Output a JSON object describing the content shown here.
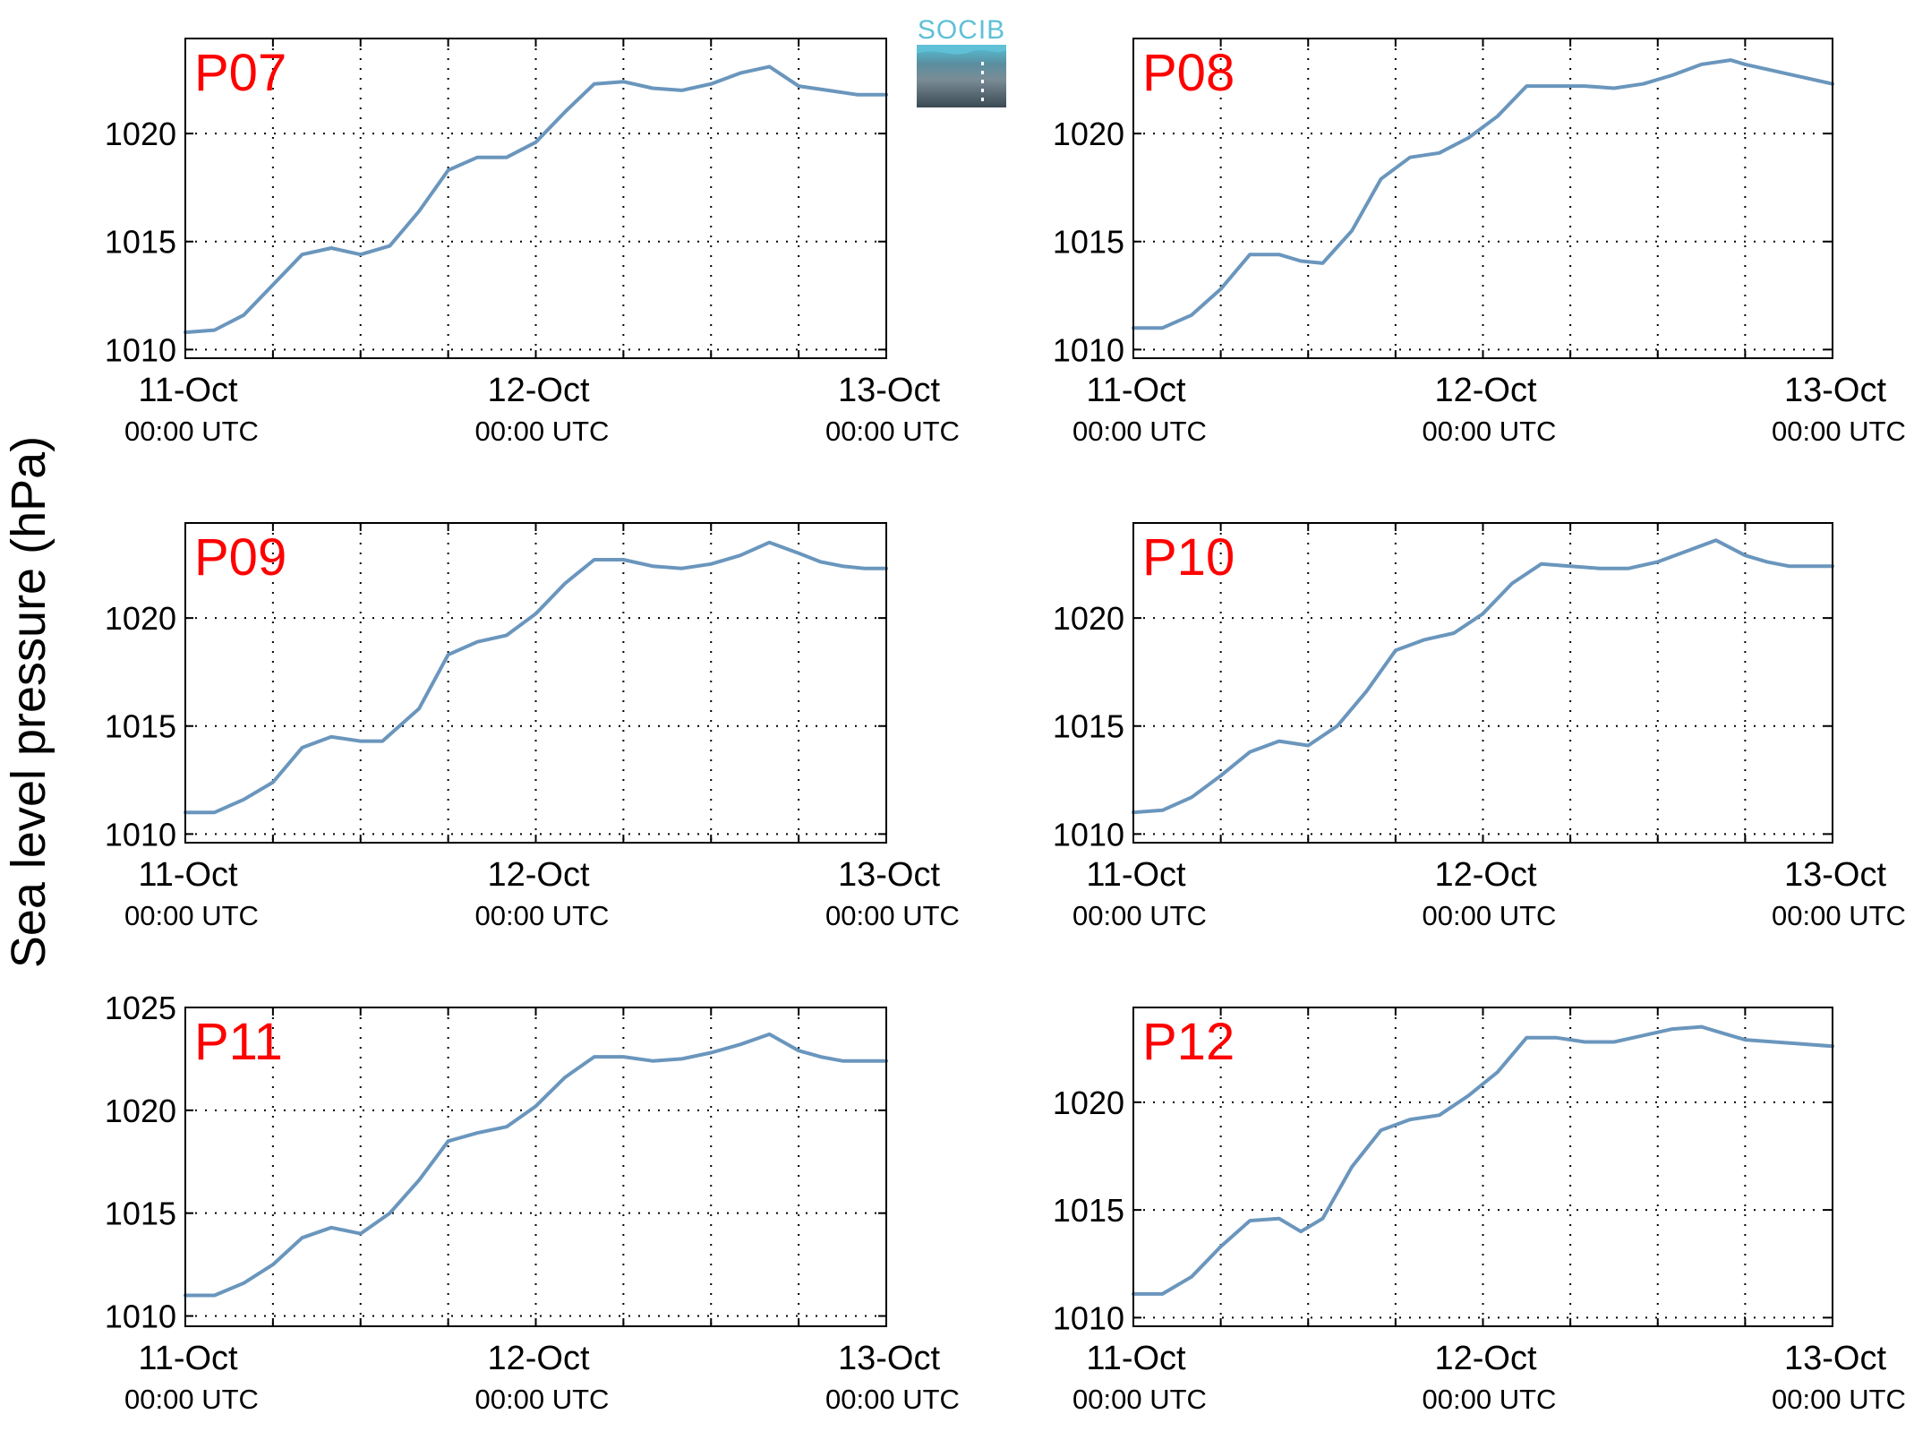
{
  "ylabel": "Sea level pressure (hPa)",
  "logo": {
    "text": "SOCIB",
    "color": "#5fc0d6"
  },
  "line_color": "#6a96bd",
  "title_color": "#ff0000",
  "chart_data": [
    {
      "type": "line",
      "title": "P07",
      "x_ticks": [
        [
          "11-Oct",
          "00:00 UTC"
        ],
        [
          "12-Oct",
          "00:00 UTC"
        ],
        [
          "13-Oct",
          "00:00 UTC"
        ]
      ],
      "x_range_hours": [
        0,
        48
      ],
      "y_ticks": [
        "1010",
        "1015",
        "1020"
      ],
      "ylim": [
        1009.6,
        1024.4
      ],
      "grid": true,
      "x_hours": [
        0,
        2,
        4,
        6,
        8,
        10,
        12,
        14,
        16,
        18,
        20,
        22,
        24,
        26,
        28,
        30,
        32,
        34,
        36,
        38,
        40,
        42,
        44,
        46,
        47,
        48
      ],
      "values": [
        1010.8,
        1010.9,
        1011.6,
        1013.0,
        1014.4,
        1014.7,
        1014.4,
        1014.8,
        1016.4,
        1018.3,
        1018.9,
        1018.9,
        1019.6,
        1021.0,
        1022.3,
        1022.4,
        1022.1,
        1022.0,
        1022.3,
        1022.8,
        1023.1,
        1022.2,
        1022.0,
        1021.8,
        1021.8,
        1021.8
      ]
    },
    {
      "type": "line",
      "title": "P08",
      "x_ticks": [
        [
          "11-Oct",
          "00:00 UTC"
        ],
        [
          "12-Oct",
          "00:00 UTC"
        ],
        [
          "13-Oct",
          "00:00 UTC"
        ]
      ],
      "x_range_hours": [
        0,
        48
      ],
      "y_ticks": [
        "1010",
        "1015",
        "1020"
      ],
      "ylim": [
        1009.6,
        1024.4
      ],
      "grid": true,
      "x_hours": [
        0,
        2,
        4,
        6,
        8,
        10,
        11.5,
        13,
        15,
        17,
        19,
        21,
        23,
        25,
        27,
        29,
        31,
        33,
        35,
        37,
        39,
        41,
        42,
        44,
        46,
        48
      ],
      "values": [
        1011.0,
        1011.0,
        1011.6,
        1012.8,
        1014.4,
        1014.4,
        1014.1,
        1014.0,
        1015.5,
        1017.9,
        1018.9,
        1019.1,
        1019.8,
        1020.8,
        1022.2,
        1022.2,
        1022.2,
        1022.1,
        1022.3,
        1022.7,
        1023.2,
        1023.4,
        1023.2,
        1022.9,
        1022.6,
        1022.3
      ]
    },
    {
      "type": "line",
      "title": "P09",
      "x_ticks": [
        [
          "11-Oct",
          "00:00 UTC"
        ],
        [
          "12-Oct",
          "00:00 UTC"
        ],
        [
          "13-Oct",
          "00:00 UTC"
        ]
      ],
      "x_range_hours": [
        0,
        48
      ],
      "y_ticks": [
        "1010",
        "1015",
        "1020"
      ],
      "ylim": [
        1009.6,
        1024.4
      ],
      "grid": true,
      "x_hours": [
        0,
        2,
        4,
        6,
        8,
        10,
        12,
        13.5,
        16,
        18,
        20,
        22,
        24,
        26,
        28,
        30,
        32,
        34,
        36,
        38,
        40,
        42,
        43.5,
        45,
        46.5,
        48
      ],
      "values": [
        1011.0,
        1011.0,
        1011.6,
        1012.4,
        1014.0,
        1014.5,
        1014.3,
        1014.3,
        1015.8,
        1018.3,
        1018.9,
        1019.2,
        1020.2,
        1021.6,
        1022.7,
        1022.7,
        1022.4,
        1022.3,
        1022.5,
        1022.9,
        1023.5,
        1023.0,
        1022.6,
        1022.4,
        1022.3,
        1022.3
      ]
    },
    {
      "type": "line",
      "title": "P10",
      "x_ticks": [
        [
          "11-Oct",
          "00:00 UTC"
        ],
        [
          "12-Oct",
          "00:00 UTC"
        ],
        [
          "13-Oct",
          "00:00 UTC"
        ]
      ],
      "x_range_hours": [
        0,
        48
      ],
      "y_ticks": [
        "1010",
        "1015",
        "1020"
      ],
      "ylim": [
        1009.6,
        1024.4
      ],
      "grid": true,
      "x_hours": [
        0,
        2,
        4,
        6,
        8,
        10,
        12,
        14,
        16,
        18,
        20,
        22,
        24,
        26,
        28,
        30,
        32,
        34,
        36,
        38,
        40,
        42,
        43.5,
        45,
        46.5,
        48
      ],
      "values": [
        1011.0,
        1011.1,
        1011.7,
        1012.7,
        1013.8,
        1014.3,
        1014.1,
        1015.0,
        1016.6,
        1018.5,
        1019.0,
        1019.3,
        1020.2,
        1021.6,
        1022.5,
        1022.4,
        1022.3,
        1022.3,
        1022.6,
        1023.1,
        1023.6,
        1022.9,
        1022.6,
        1022.4,
        1022.4,
        1022.4
      ]
    },
    {
      "type": "line",
      "title": "P11",
      "x_ticks": [
        [
          "11-Oct",
          "00:00 UTC"
        ],
        [
          "12-Oct",
          "00:00 UTC"
        ],
        [
          "13-Oct",
          "00:00 UTC"
        ]
      ],
      "x_range_hours": [
        0,
        48
      ],
      "y_ticks": [
        "1010",
        "1015",
        "1020",
        "1025"
      ],
      "ylim": [
        1009.5,
        1025
      ],
      "grid": true,
      "x_hours": [
        0,
        2,
        4,
        6,
        8,
        10,
        12,
        14,
        16,
        18,
        20,
        22,
        24,
        26,
        28,
        30,
        32,
        34,
        36,
        38,
        40,
        42,
        43.5,
        45,
        46.5,
        48
      ],
      "values": [
        1011.0,
        1011.0,
        1011.6,
        1012.5,
        1013.8,
        1014.3,
        1014.0,
        1015.0,
        1016.6,
        1018.5,
        1018.9,
        1019.2,
        1020.2,
        1021.6,
        1022.6,
        1022.6,
        1022.4,
        1022.5,
        1022.8,
        1023.2,
        1023.7,
        1022.9,
        1022.6,
        1022.4,
        1022.4,
        1022.4
      ]
    },
    {
      "type": "line",
      "title": "P12",
      "x_ticks": [
        [
          "11-Oct",
          "00:00 UTC"
        ],
        [
          "12-Oct",
          "00:00 UTC"
        ],
        [
          "13-Oct",
          "00:00 UTC"
        ]
      ],
      "x_range_hours": [
        0,
        48
      ],
      "y_ticks": [
        "1010",
        "1015",
        "1020"
      ],
      "ylim": [
        1009.6,
        1024.4
      ],
      "grid": true,
      "x_hours": [
        0,
        2,
        4,
        6,
        8,
        10,
        11.5,
        13,
        15,
        17,
        19,
        21,
        23,
        25,
        27,
        29,
        31,
        33,
        35,
        37,
        39,
        41,
        42,
        44,
        46,
        48
      ],
      "values": [
        1011.1,
        1011.1,
        1011.9,
        1013.3,
        1014.5,
        1014.6,
        1014.0,
        1014.6,
        1017.0,
        1018.7,
        1019.2,
        1019.4,
        1020.3,
        1021.4,
        1023.0,
        1023.0,
        1022.8,
        1022.8,
        1023.1,
        1023.4,
        1023.5,
        1023.1,
        1022.9,
        1022.8,
        1022.7,
        1022.6
      ]
    }
  ]
}
